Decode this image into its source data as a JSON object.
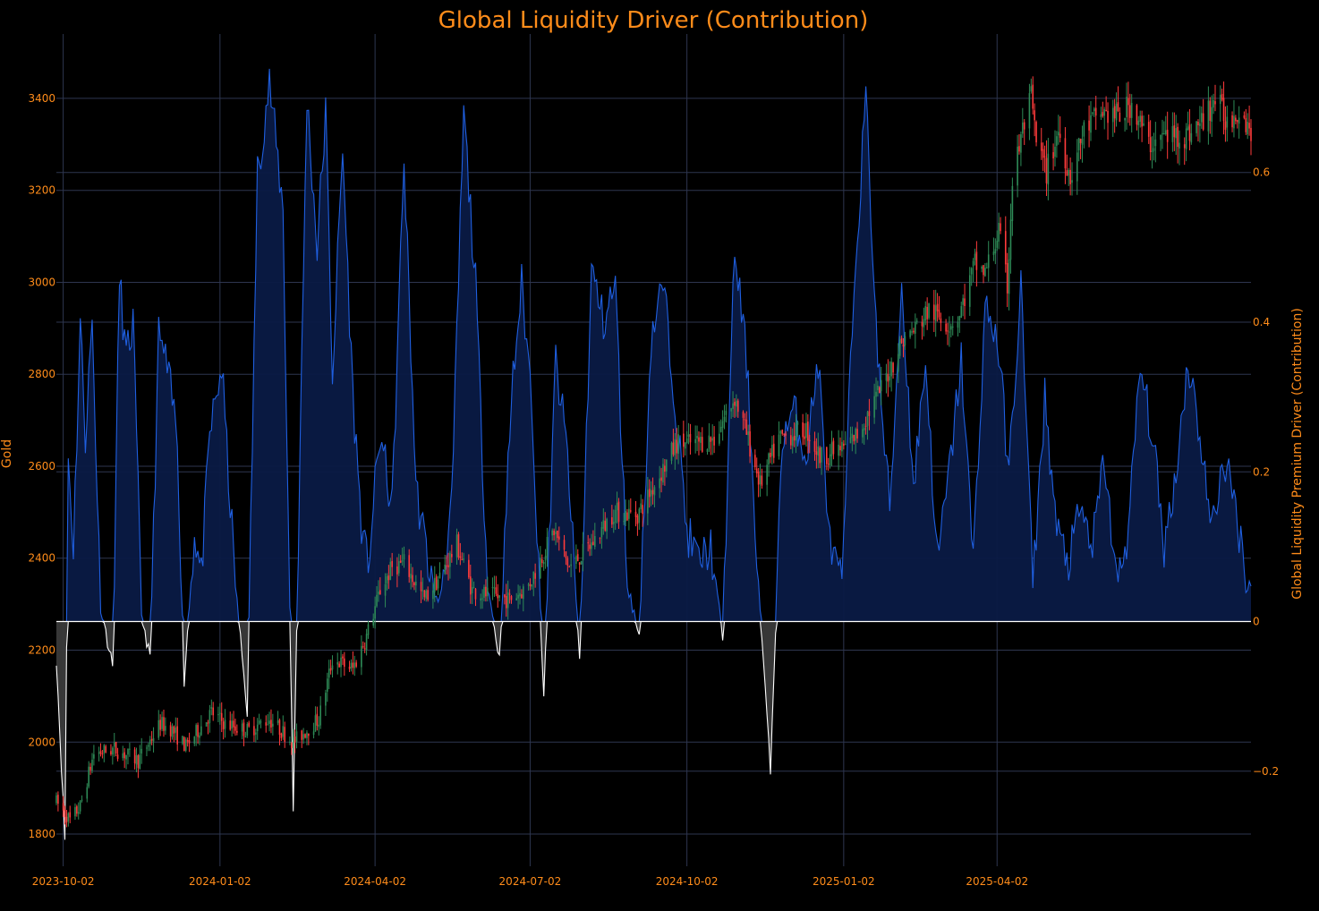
{
  "colors": {
    "background": "#000000",
    "text": "#ff8c1a",
    "grid": "#2e3650",
    "candle_up": "#2e8b57",
    "candle_down": "#ff3b3b",
    "driver_pos_line": "#1f5fe0",
    "driver_pos_fill": "#0a1a45",
    "driver_neg_line": "#ffffff",
    "driver_neg_fill": "#3a3a3a",
    "zero_line": "#ffffff"
  },
  "chart_data": {
    "type": "candlestick+area",
    "title": "Global Liquidity Driver (Contribution)",
    "x_axis": {
      "type": "date",
      "range": [
        "2023-09-28",
        "2025-08-29"
      ],
      "tick_labels": [
        "2023-10-02",
        "2024-01-02",
        "2024-04-02",
        "2024-07-02",
        "2024-10-02",
        "2025-01-02",
        "2025-04-02"
      ],
      "grid": true
    },
    "y_left": {
      "title": "Gold",
      "range": [
        1730,
        3540
      ],
      "ticks": [
        "1800",
        "2000",
        "2200",
        "2400",
        "2600",
        "2800",
        "3000",
        "3200",
        "3400"
      ]
    },
    "y_right": {
      "title": "Global Liquidity Premium Driver (Contribution)",
      "range": [
        -0.327,
        0.785
      ],
      "ticks": [
        "−0.2",
        "0",
        "0.2",
        "0.4",
        "0.6"
      ]
    },
    "legend": "none",
    "gold_price_anchors": {
      "x": [
        "2023-09-28",
        "2023-10-06",
        "2023-10-12",
        "2023-10-20",
        "2023-11-01",
        "2023-11-15",
        "2023-11-28",
        "2023-12-04",
        "2023-12-13",
        "2023-12-28",
        "2024-01-05",
        "2024-01-18",
        "2024-01-31",
        "2024-02-14",
        "2024-02-29",
        "2024-03-08",
        "2024-03-20",
        "2024-03-28",
        "2024-04-05",
        "2024-04-12",
        "2024-04-19",
        "2024-05-01",
        "2024-05-10",
        "2024-05-20",
        "2024-05-29",
        "2024-06-07",
        "2024-06-20",
        "2024-07-01",
        "2024-07-16",
        "2024-07-25",
        "2024-08-07",
        "2024-08-20",
        "2024-09-03",
        "2024-09-16",
        "2024-09-26",
        "2024-10-07",
        "2024-10-18",
        "2024-10-30",
        "2024-11-06",
        "2024-11-14",
        "2024-11-25",
        "2024-12-11",
        "2024-12-19",
        "2025-01-02",
        "2025-01-10",
        "2025-01-24",
        "2025-02-05",
        "2025-02-11",
        "2025-02-21",
        "2025-03-05",
        "2025-03-11",
        "2025-03-20",
        "2025-03-26",
        "2025-04-03",
        "2025-04-08",
        "2025-04-11",
        "2025-04-17",
        "2025-04-22",
        "2025-04-25",
        "2025-05-01",
        "2025-05-08",
        "2025-05-15",
        "2025-05-23",
        "2025-06-02",
        "2025-06-13",
        "2025-06-20",
        "2025-06-30",
        "2025-07-10",
        "2025-07-22",
        "2025-08-01",
        "2025-08-08",
        "2025-08-15",
        "2025-08-22",
        "2025-08-29"
      ],
      "y": [
        1870,
        1830,
        1860,
        1975,
        1985,
        1960,
        2040,
        2030,
        1990,
        2065,
        2040,
        2025,
        2050,
        2000,
        2050,
        2180,
        2160,
        2230,
        2330,
        2380,
        2390,
        2310,
        2360,
        2430,
        2330,
        2320,
        2310,
        2340,
        2460,
        2380,
        2430,
        2500,
        2495,
        2580,
        2650,
        2650,
        2660,
        2750,
        2670,
        2560,
        2660,
        2680,
        2620,
        2640,
        2670,
        2770,
        2870,
        2890,
        2940,
        2910,
        2930,
        3040,
        3020,
        3110,
        2990,
        3220,
        3330,
        3400,
        3300,
        3240,
        3330,
        3230,
        3330,
        3370,
        3360,
        3390,
        3300,
        3320,
        3320,
        3350,
        3400,
        3350,
        3380,
        3330
      ]
    },
    "liquidity_driver_anchors": {
      "x": [
        "2023-09-28",
        "2023-10-03",
        "2023-10-05",
        "2023-10-08",
        "2023-10-12",
        "2023-10-15",
        "2023-10-19",
        "2023-10-24",
        "2023-10-31",
        "2023-11-04",
        "2023-11-08",
        "2023-11-12",
        "2023-11-17",
        "2023-11-22",
        "2023-11-27",
        "2023-12-01",
        "2023-12-08",
        "2023-12-12",
        "2023-12-18",
        "2023-12-22",
        "2023-12-27",
        "2024-01-03",
        "2024-01-11",
        "2024-01-18",
        "2024-01-24",
        "2024-01-31",
        "2024-02-08",
        "2024-02-14",
        "2024-02-22",
        "2024-02-28",
        "2024-03-04",
        "2024-03-08",
        "2024-03-14",
        "2024-03-20",
        "2024-03-26",
        "2024-03-29",
        "2024-04-05",
        "2024-04-12",
        "2024-04-19",
        "2024-04-26",
        "2024-05-03",
        "2024-05-09",
        "2024-05-17",
        "2024-05-24",
        "2024-05-31",
        "2024-06-07",
        "2024-06-14",
        "2024-06-21",
        "2024-06-27",
        "2024-07-03",
        "2024-07-10",
        "2024-07-17",
        "2024-07-24",
        "2024-07-31",
        "2024-08-07",
        "2024-08-14",
        "2024-08-21",
        "2024-08-28",
        "2024-09-04",
        "2024-09-11",
        "2024-09-18",
        "2024-09-25",
        "2024-10-02",
        "2024-10-09",
        "2024-10-16",
        "2024-10-23",
        "2024-10-30",
        "2024-11-06",
        "2024-11-13",
        "2024-11-20",
        "2024-11-27",
        "2024-12-04",
        "2024-12-11",
        "2024-12-18",
        "2024-12-25",
        "2025-01-01",
        "2025-01-08",
        "2025-01-15",
        "2025-01-22",
        "2025-01-29",
        "2025-02-05",
        "2025-02-12",
        "2025-02-19",
        "2025-02-26",
        "2025-03-05",
        "2025-03-12",
        "2025-03-19",
        "2025-03-26",
        "2025-04-02",
        "2025-04-09",
        "2025-04-16",
        "2025-04-23",
        "2025-04-30",
        "2025-05-07",
        "2025-05-14",
        "2025-05-21",
        "2025-05-28",
        "2025-06-04",
        "2025-06-11",
        "2025-06-18",
        "2025-06-25",
        "2025-07-02",
        "2025-07-09",
        "2025-07-16",
        "2025-07-23",
        "2025-07-30",
        "2025-08-06",
        "2025-08-13",
        "2025-08-20",
        "2025-08-27"
      ],
      "y": [
        -0.05,
        -0.29,
        0.22,
        0.1,
        0.4,
        0.25,
        0.4,
        0.02,
        -0.06,
        0.46,
        0.35,
        0.4,
        0.01,
        -0.05,
        0.38,
        0.35,
        0.25,
        -0.08,
        0.12,
        0.06,
        0.25,
        0.34,
        0.05,
        -0.12,
        0.6,
        0.72,
        0.55,
        -0.25,
        0.7,
        0.5,
        0.68,
        0.33,
        0.63,
        0.3,
        0.1,
        0.08,
        0.25,
        0.15,
        0.62,
        0.18,
        0.08,
        0.02,
        0.15,
        0.68,
        0.45,
        0.05,
        -0.05,
        0.3,
        0.45,
        0.3,
        -0.1,
        0.35,
        0.22,
        -0.05,
        0.47,
        0.4,
        0.45,
        0.05,
        -0.02,
        0.38,
        0.45,
        0.3,
        0.12,
        0.08,
        0.1,
        -0.02,
        0.5,
        0.35,
        0.05,
        -0.2,
        0.25,
        0.28,
        0.22,
        0.35,
        0.1,
        0.05,
        0.45,
        0.7,
        0.35,
        0.15,
        0.45,
        0.18,
        0.35,
        0.08,
        0.2,
        0.35,
        0.08,
        0.42,
        0.38,
        0.2,
        0.45,
        0.05,
        0.3,
        0.12,
        0.08,
        0.15,
        0.1,
        0.22,
        0.05,
        0.12,
        0.34,
        0.25,
        0.1,
        0.2,
        0.35,
        0.25,
        0.12,
        0.22,
        0.15,
        0.05
      ]
    }
  }
}
